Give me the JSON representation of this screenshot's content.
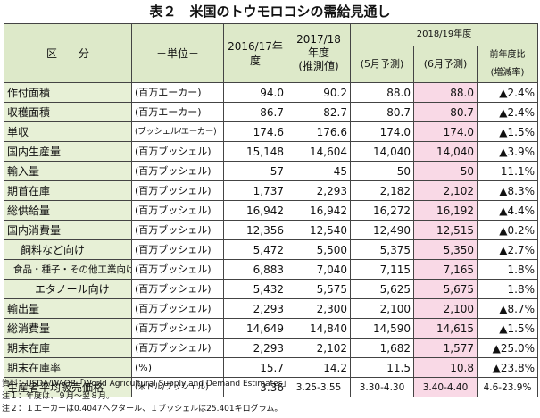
{
  "title": "表２　米国のトウモロコシの需給見通し",
  "header": {
    "category": "区　　分",
    "unit": "－単位－",
    "year1": "2016/17年度",
    "year2_top": "2017/18",
    "year2_mid": "年度",
    "year2_bot": "(推測値)",
    "group": "2018/19年度",
    "may": "(5月予測)",
    "june": "(6月予測)",
    "change_top": "前年度比",
    "change_bot": "(増減率)"
  },
  "rows": [
    {
      "label": "作付面積",
      "unit": "(百万エーカー)",
      "y1": "94.0",
      "y2": "90.2",
      "may": "88.0",
      "june": "88.0",
      "chg": "▲2.4%"
    },
    {
      "label": "収穫面積",
      "unit": "(百万エーカー)",
      "y1": "86.7",
      "y2": "82.7",
      "may": "80.7",
      "june": "80.7",
      "chg": "▲2.4%"
    },
    {
      "label": "単収",
      "unit": "(ブッシェル/エーカー)",
      "y1": "174.6",
      "y2": "176.6",
      "may": "174.0",
      "june": "174.0",
      "chg": "▲1.5%"
    },
    {
      "label": "国内生産量",
      "unit": "(百万ブッシェル)",
      "y1": "15,148",
      "y2": "14,604",
      "may": "14,040",
      "june": "14,040",
      "chg": "▲3.9%"
    },
    {
      "label": "輸入量",
      "unit": "(百万ブッシェル)",
      "y1": "57",
      "y2": "45",
      "may": "50",
      "june": "50",
      "chg": "11.1%"
    },
    {
      "label": "期首在庫",
      "unit": "(百万ブッシェル)",
      "y1": "1,737",
      "y2": "2,293",
      "may": "2,182",
      "june": "2,102",
      "chg": "▲8.3%"
    },
    {
      "label": "総供給量",
      "unit": "(百万ブッシェル)",
      "y1": "16,942",
      "y2": "16,942",
      "may": "16,272",
      "june": "16,192",
      "chg": "▲4.4%"
    },
    {
      "label": "国内消費量",
      "unit": "(百万ブッシェル)",
      "y1": "12,356",
      "y2": "12,540",
      "may": "12,490",
      "june": "12,515",
      "chg": "▲0.2%"
    },
    {
      "label": "飼料など向け",
      "unit": "(百万ブッシェル)",
      "y1": "5,472",
      "y2": "5,500",
      "may": "5,375",
      "june": "5,350",
      "chg": "▲2.7%"
    },
    {
      "label": "食品・種子・その他工業向け",
      "unit": "(百万ブッシェル)",
      "y1": "6,883",
      "y2": "7,040",
      "may": "7,115",
      "june": "7,165",
      "chg": "1.8%"
    },
    {
      "label": "エタノール向け",
      "unit": "(百万ブッシェル)",
      "y1": "5,432",
      "y2": "5,575",
      "may": "5,625",
      "june": "5,675",
      "chg": "1.8%"
    },
    {
      "label": "輸出量",
      "unit": "(百万ブッシェル)",
      "y1": "2,293",
      "y2": "2,300",
      "may": "2,100",
      "june": "2,100",
      "chg": "▲8.7%"
    },
    {
      "label": "総消費量",
      "unit": "(百万ブッシェル)",
      "y1": "14,649",
      "y2": "14,840",
      "may": "14,590",
      "june": "14,615",
      "chg": "▲1.5%"
    },
    {
      "label": "期末在庫",
      "unit": "(百万ブッシェル)",
      "y1": "2,293",
      "y2": "2,102",
      "may": "1,682",
      "june": "1,577",
      "chg": "▲25.0%"
    },
    {
      "label": "期末在庫率",
      "unit": "(%)",
      "y1": "15.7",
      "y2": "14.2",
      "may": "11.5",
      "june": "10.8",
      "chg": "▲23.8%"
    },
    {
      "label": "生産者平均販売価格",
      "unit": "(米ドル/ブッシェル)",
      "y1": "3.36",
      "y2": "3.25-3.55",
      "may": "3.30-4.30",
      "june": "3.40-4.40",
      "chg": "4.6-23.9%"
    }
  ],
  "notes": {
    "source": "資料：USDA/WAOB「World Agricultural Supply and Demand Estimates」",
    "note1": "注１：年度は、９月～翌８月。",
    "note2": "注２：１エーカーは0.4047ヘクタール、１ブッシェルは25.401キログラム。"
  }
}
